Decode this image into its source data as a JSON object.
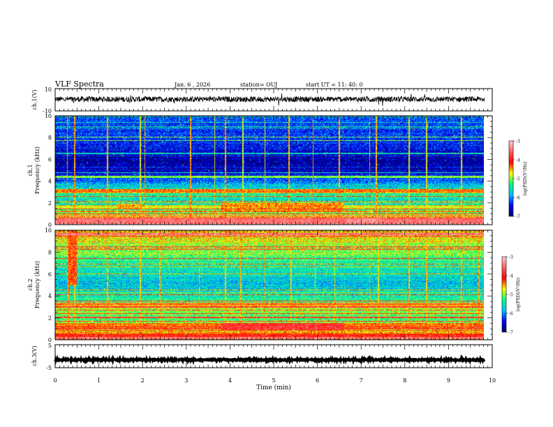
{
  "header": {
    "title": "VLF Spectra",
    "date": "Jan. 6 , 2026",
    "station": "station= OUJ",
    "start": "start UT = 11: 40: 0"
  },
  "x_axis": {
    "label": "Time (min)",
    "ticks": [
      "0",
      "1",
      "2",
      "3",
      "4",
      "5",
      "6",
      "7",
      "8",
      "9",
      "10"
    ],
    "range": [
      0,
      10
    ],
    "data_end": 9.82
  },
  "panels": {
    "ch1_wave": {
      "ylabel": "ch.1(V)",
      "ticks": [
        "10",
        "-10"
      ],
      "ylim": [
        -10,
        10
      ]
    },
    "ch1_spec": {
      "ylabel_top": "ch.1",
      "ylabel": "Frequency (kHz)",
      "ticks": [
        "10",
        "8",
        "6",
        "4",
        "2",
        "0"
      ],
      "ylim": [
        0,
        10
      ]
    },
    "ch2_spec": {
      "ylabel_top": "ch.2",
      "ylabel": "Frequency (kHz)",
      "ticks": [
        "10",
        "8",
        "6",
        "4",
        "2",
        "0"
      ],
      "ylim": [
        0,
        10
      ]
    },
    "ch3_wave": {
      "ylabel": "ch.3(V)",
      "ticks": [
        "5",
        "-5"
      ],
      "ylim": [
        -5,
        5
      ]
    }
  },
  "colorbar": {
    "label": "log(PSD)(V²/Hz)",
    "ticks": [
      "-3",
      "-4",
      "-5",
      "-6",
      "-7"
    ],
    "range": [
      -7,
      -3
    ],
    "colors": [
      "#000060",
      "#0000ff",
      "#00bfff",
      "#00ff80",
      "#ffff00",
      "#ff0000",
      "#ff6060",
      "#ffd0d0"
    ]
  },
  "chart_data": [
    {
      "type": "line",
      "title": "ch.1 waveform",
      "ylabel": "ch.1(V)",
      "xlabel": "Time (min)",
      "ylim": [
        -10,
        10
      ],
      "x_range": [
        0,
        9.82
      ],
      "series": [
        {
          "name": "ch.1",
          "level": 0.5,
          "noise_amplitude": 2.5
        }
      ]
    },
    {
      "type": "heatmap",
      "title": "ch.1 spectrogram",
      "ylabel": "Frequency (kHz)",
      "xlabel": "Time (min)",
      "ylim": [
        0,
        10
      ],
      "x_range": [
        0,
        9.82
      ],
      "base_log_psd_by_freq": [
        [
          0,
          -3.6
        ],
        [
          0.5,
          -4.2
        ],
        [
          1,
          -5.0
        ],
        [
          2,
          -5.6
        ],
        [
          3,
          -5.3
        ],
        [
          4,
          -6.1
        ],
        [
          5,
          -6.7
        ],
        [
          6,
          -6.8
        ],
        [
          7,
          -6.5
        ],
        [
          8,
          -6.3
        ],
        [
          10,
          -6.2
        ]
      ],
      "bright_bands_khz": [
        [
          0.25,
          0.3,
          -3.5
        ],
        [
          1.6,
          0.2,
          -4.8
        ],
        [
          3.1,
          0.15,
          -4.4
        ],
        [
          4.4,
          0.1,
          -5.0
        ]
      ],
      "segments": [
        {
          "t_start": 1.4,
          "t_end": 2.0,
          "f_low": 1.4,
          "f_high": 1.9,
          "log_psd": -4.6
        },
        {
          "t_start": 3.8,
          "t_end": 6.6,
          "f_low": 1.2,
          "f_high": 2.0,
          "log_psd": -4.5
        },
        {
          "t_start": 6.7,
          "t_end": 7.4,
          "f_low": 0.2,
          "f_high": 0.6,
          "log_psd": -3.4
        }
      ],
      "vertical_spike_times": [
        0.28,
        0.45,
        1.2,
        1.95,
        2.05,
        3.1,
        3.65,
        3.9,
        4.3,
        4.8,
        5.35,
        5.9,
        6.5,
        7.2,
        7.35,
        8.1,
        8.5,
        9.3
      ],
      "colorbar_range": [
        -7,
        -3
      ]
    },
    {
      "type": "heatmap",
      "title": "ch.2 spectrogram",
      "ylabel": "Frequency (kHz)",
      "xlabel": "Time (min)",
      "ylim": [
        0,
        10
      ],
      "x_range": [
        0,
        9.82
      ],
      "base_log_psd_by_freq": [
        [
          0,
          -4.0
        ],
        [
          1,
          -4.8
        ],
        [
          2,
          -5.2
        ],
        [
          3,
          -4.8
        ],
        [
          4,
          -5.5
        ],
        [
          5,
          -5.8
        ],
        [
          6,
          -5.6
        ],
        [
          7,
          -5.4
        ],
        [
          8,
          -5.0
        ],
        [
          10,
          -4.6
        ]
      ],
      "bright_bands_khz": [
        [
          0.4,
          0.2,
          -4.2
        ],
        [
          1.3,
          0.2,
          -4.4
        ],
        [
          3.2,
          0.2,
          -4.6
        ]
      ],
      "segments": [
        {
          "t_start": 3.8,
          "t_end": 6.6,
          "f_low": 0.9,
          "f_high": 1.5,
          "log_psd": -3.9
        },
        {
          "t_start": 0.3,
          "t_end": 0.5,
          "f_low": 5.0,
          "f_high": 10.0,
          "log_psd": -4.3
        }
      ],
      "vertical_spike_times": [
        0.3,
        0.45,
        1.2,
        1.95,
        2.4,
        3.3,
        3.9,
        4.25,
        4.8,
        5.4,
        5.95,
        6.4,
        7.2,
        7.4,
        8.1,
        8.5,
        9.3,
        9.7
      ],
      "colorbar_range": [
        -7,
        -3
      ]
    },
    {
      "type": "line",
      "title": "ch.3 waveform",
      "ylabel": "ch.3(V)",
      "xlabel": "Time (min)",
      "ylim": [
        -5,
        5
      ],
      "x_range": [
        0,
        9.82
      ],
      "series": [
        {
          "name": "ch.3",
          "level": -1.6,
          "noise_amplitude": 0.3
        }
      ]
    }
  ]
}
